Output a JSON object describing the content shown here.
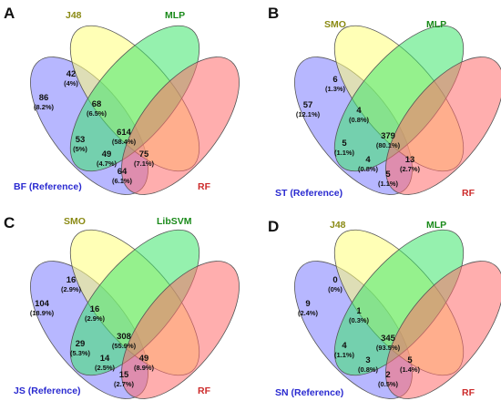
{
  "colors": {
    "reference": "#7b7bff",
    "yellow": "#ffff7a",
    "green": "#3ee66b",
    "red": "#ff6b6b",
    "reference_label": "#2a2ad0",
    "yellow_label": "#8a8a14",
    "green_label": "#1a8a1a",
    "red_label": "#cc2a2a"
  },
  "panels": [
    {
      "letter": "A",
      "sets": [
        "BF (Reference)",
        "J48",
        "MLP",
        "RF"
      ],
      "regions": {
        "ref_only": {
          "count": "86",
          "pct": "(8.2%)"
        },
        "ref_yel": {
          "count": "42",
          "pct": "(4%)"
        },
        "ref_yel_grn": {
          "count": "68",
          "pct": "(6.5%)"
        },
        "ref_grn": {
          "count": "53",
          "pct": "(5%)"
        },
        "all": {
          "count": "614",
          "pct": "(58.4%)"
        },
        "ref_grn_red": {
          "count": "49",
          "pct": "(4.7%)"
        },
        "ref_yel_red": {
          "count": "75",
          "pct": "(7.1%)"
        },
        "ref_red": {
          "count": "64",
          "pct": "(6.1%)"
        }
      }
    },
    {
      "letter": "B",
      "sets": [
        "ST (Reference)",
        "SMO",
        "MLP",
        "RF"
      ],
      "regions": {
        "ref_only": {
          "count": "57",
          "pct": "(12.1%)"
        },
        "ref_yel": {
          "count": "6",
          "pct": "(1.3%)"
        },
        "ref_yel_grn": {
          "count": "4",
          "pct": "(0.8%)"
        },
        "ref_grn": {
          "count": "5",
          "pct": "(1.1%)"
        },
        "all": {
          "count": "379",
          "pct": "(80.1%)"
        },
        "ref_grn_red": {
          "count": "4",
          "pct": "(0.8%)"
        },
        "ref_yel_red": {
          "count": "13",
          "pct": "(2.7%)"
        },
        "ref_red": {
          "count": "5",
          "pct": "(1.1%)"
        }
      }
    },
    {
      "letter": "C",
      "sets": [
        "JS (Reference)",
        "SMO",
        "LibSVM",
        "RF"
      ],
      "regions": {
        "ref_only": {
          "count": "104",
          "pct": "(18.9%)"
        },
        "ref_yel": {
          "count": "16",
          "pct": "(2.9%)"
        },
        "ref_yel_grn": {
          "count": "16",
          "pct": "(2.9%)"
        },
        "ref_grn": {
          "count": "29",
          "pct": "(5.3%)"
        },
        "all": {
          "count": "308",
          "pct": "(55.9%)"
        },
        "ref_grn_red": {
          "count": "14",
          "pct": "(2.5%)"
        },
        "ref_yel_red": {
          "count": "49",
          "pct": "(8.9%)"
        },
        "ref_red": {
          "count": "15",
          "pct": "(2.7%)"
        }
      }
    },
    {
      "letter": "D",
      "sets": [
        "SN (Reference)",
        "J48",
        "MLP",
        "RF"
      ],
      "regions": {
        "ref_only": {
          "count": "9",
          "pct": "(2.4%)"
        },
        "ref_yel": {
          "count": "0",
          "pct": "(0%)"
        },
        "ref_yel_grn": {
          "count": "1",
          "pct": "(0.3%)"
        },
        "ref_grn": {
          "count": "4",
          "pct": "(1.1%)"
        },
        "all": {
          "count": "345",
          "pct": "(93.5%)"
        },
        "ref_grn_red": {
          "count": "3",
          "pct": "(0.8%)"
        },
        "ref_yel_red": {
          "count": "5",
          "pct": "(1.4%)"
        },
        "ref_red": {
          "count": "2",
          "pct": "(0.5%)"
        }
      }
    }
  ]
}
